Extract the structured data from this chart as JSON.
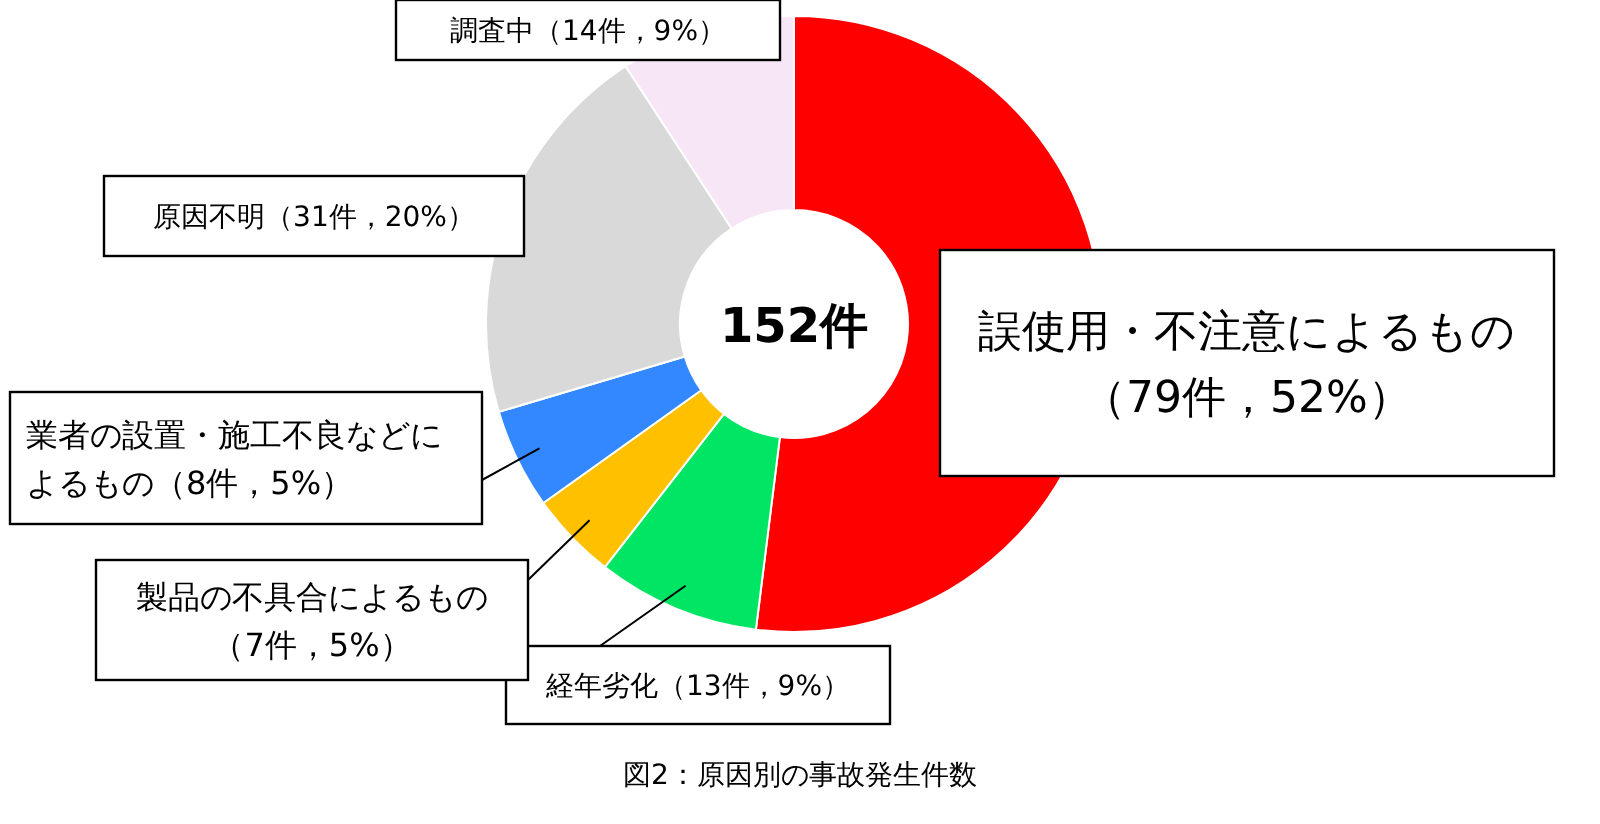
{
  "chart_data": {
    "type": "donut",
    "title": "図2：原因別の事故発生件数",
    "categories": [
      "誤使用・不注意によるもの",
      "経年劣化",
      "製品の不具合によるもの",
      "業者の設置・施工不良などによるもの",
      "原因不明",
      "調査中"
    ],
    "values": [
      79,
      13,
      7,
      8,
      31,
      14
    ],
    "value_labels": [
      "（79件，52%）",
      "（13件，9%）",
      "（7件，5%）",
      "（8件，5%）",
      "（31件，20%）",
      "（14件，9%）"
    ],
    "colors": [
      "#ff0000",
      "#00e664",
      "#ffc000",
      "#3388ff",
      "#d9d9d9",
      "#f6e6f6"
    ],
    "annotations": [
      "152件"
    ]
  }
}
